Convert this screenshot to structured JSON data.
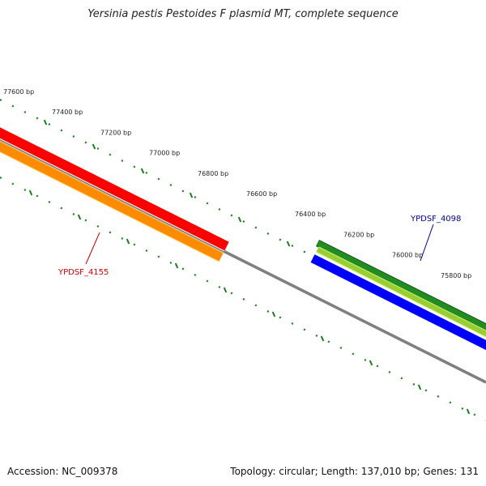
{
  "title": "Yersinia pestis Pestoides F plasmid MT, complete sequence",
  "footer": {
    "accession": "Accession: NC_009378",
    "summary": "Topology: circular; Length: 137,010 bp; Genes: 131"
  },
  "ruler": {
    "labels": [
      "77600 bp",
      "77400 bp",
      "77200 bp",
      "77000 bp",
      "76800 bp",
      "76600 bp",
      "76400 bp",
      "76200 bp",
      "76000 bp",
      "75800 bp"
    ],
    "color": "#1a7f1a"
  },
  "backbone_color": "#7f7f7f",
  "features": [
    {
      "id": "ypdsf-4155-cds",
      "color": "#ff0000",
      "edge": "#ffffff"
    },
    {
      "id": "ypdsf-4155-gene",
      "color": "#ff8c00",
      "edge": "#ffd27a"
    },
    {
      "id": "ypdsf-4098-gene",
      "color": "#228b22",
      "edge": "#0f5c0f"
    },
    {
      "id": "ypdsf-4098-cds",
      "color": "#9acd32",
      "edge": "#c8f07a"
    },
    {
      "id": "ypdsf-4098-blast",
      "color": "#0000ff",
      "edge": "#ffffff"
    }
  ],
  "gene_labels": [
    {
      "text": "YPDSF_4155",
      "color": "#cc0000"
    },
    {
      "text": "YPDSF_4098",
      "color": "#00008b"
    }
  ]
}
